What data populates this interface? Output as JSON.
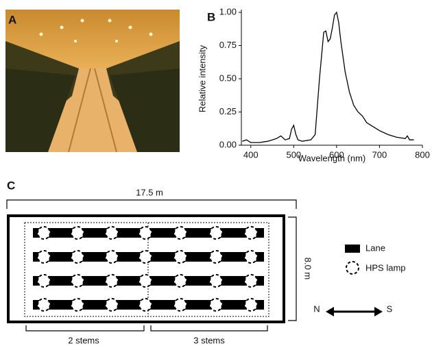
{
  "panels": {
    "a": "A",
    "b": "B",
    "c": "C"
  },
  "chart_data": {
    "type": "line",
    "xlabel": "Wavelength (nm)",
    "ylabel": "Relative intensity",
    "x": [
      380,
      390,
      400,
      420,
      440,
      460,
      470,
      480,
      490,
      495,
      500,
      505,
      510,
      520,
      540,
      550,
      560,
      570,
      575,
      580,
      585,
      590,
      595,
      600,
      605,
      610,
      620,
      630,
      640,
      650,
      660,
      670,
      680,
      700,
      720,
      740,
      760,
      765,
      770,
      780
    ],
    "values": [
      0.03,
      0.04,
      0.02,
      0.02,
      0.03,
      0.05,
      0.07,
      0.04,
      0.05,
      0.12,
      0.15,
      0.08,
      0.04,
      0.03,
      0.04,
      0.08,
      0.5,
      0.85,
      0.86,
      0.78,
      0.8,
      0.88,
      0.98,
      1.0,
      0.92,
      0.78,
      0.55,
      0.4,
      0.3,
      0.25,
      0.22,
      0.17,
      0.15,
      0.11,
      0.08,
      0.06,
      0.05,
      0.07,
      0.04,
      0.04
    ],
    "color": "#000000",
    "xlim": [
      378,
      800
    ],
    "ylim": [
      0,
      1
    ],
    "xticks": [
      400,
      500,
      600,
      700,
      800
    ],
    "yticks": [
      {
        "value": 0,
        "label": "0.00"
      },
      {
        "value": 0.25,
        "label": "0.25"
      },
      {
        "value": 0.5,
        "label": "0.50"
      },
      {
        "value": 0.75,
        "label": "0.75"
      },
      {
        "value": 1,
        "label": "1.00"
      }
    ]
  },
  "diagram": {
    "width_label": "17.5 m",
    "height_label": "8.0 m",
    "legend": {
      "lane": "Lane",
      "lamp": "HPS lamp"
    },
    "compass": {
      "north": "N",
      "south": "S"
    },
    "sections": [
      "2 stems",
      "3 stems"
    ]
  }
}
